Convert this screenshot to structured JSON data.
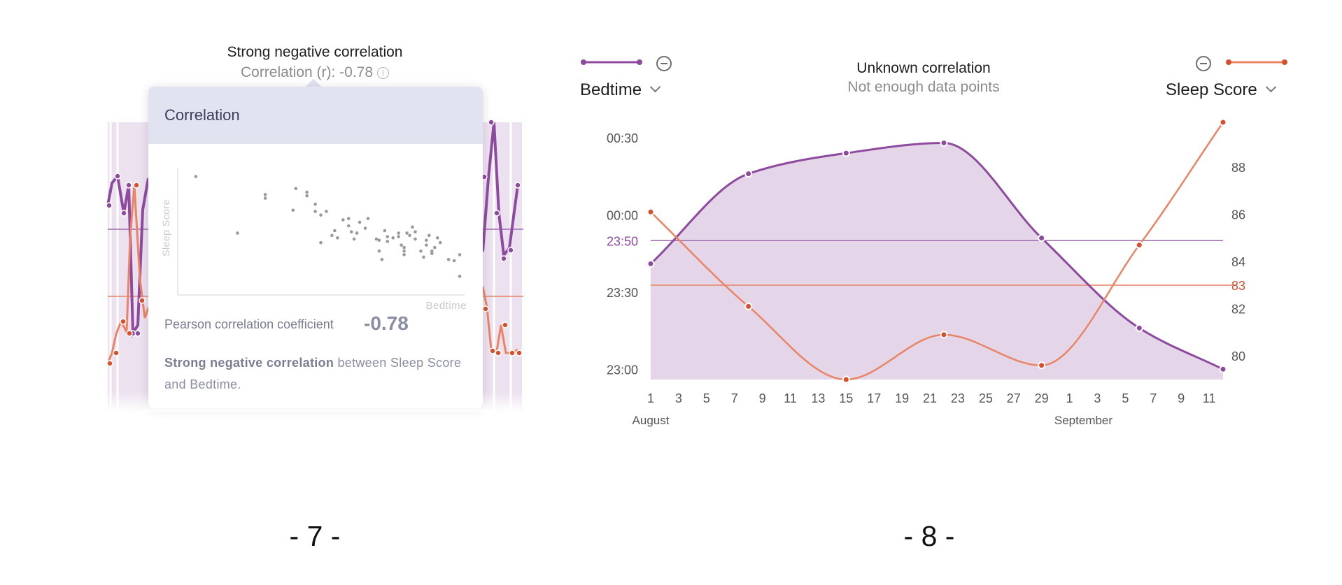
{
  "colors": {
    "bedtime": "#8e4a9e",
    "sleep_score": "#e98465",
    "sleep_score_dot": "#d6502e",
    "bedtime_fill": "#e4d6e8",
    "tooltip_header": "#e1e3f1"
  },
  "panel7": {
    "title": "Strong negative correlation",
    "subtitle": "Correlation (r): -0.78",
    "tooltip": {
      "title": "Correlation",
      "pearson_label": "Pearson correlation coefficient",
      "pearson_value": "-0.78",
      "description_bold": "Strong negative correlation",
      "description_rest": " between Sleep Score and Bedtime."
    },
    "page_number": "- 7 -"
  },
  "panel8": {
    "title": "Unknown correlation",
    "subtitle": "Not enough data points",
    "left_selector": {
      "label": "Bedtime",
      "icon": "chevron-down-icon"
    },
    "right_selector": {
      "label": "Sleep Score",
      "icon": "chevron-down-icon"
    },
    "page_number": "- 8 -"
  },
  "chart_data": [
    {
      "type": "scatter",
      "xlabel": "Bedtime",
      "ylabel": "Sleep Score",
      "x": [
        0.05,
        0.2,
        0.3,
        0.3,
        0.4,
        0.41,
        0.45,
        0.45,
        0.48,
        0.48,
        0.5,
        0.5,
        0.52,
        0.54,
        0.55,
        0.56,
        0.58,
        0.6,
        0.6,
        0.61,
        0.62,
        0.63,
        0.64,
        0.66,
        0.67,
        0.7,
        0.71,
        0.71,
        0.72,
        0.73,
        0.74,
        0.74,
        0.76,
        0.78,
        0.78,
        0.79,
        0.8,
        0.8,
        0.8,
        0.81,
        0.82,
        0.83,
        0.84,
        0.84,
        0.86,
        0.87,
        0.88,
        0.88,
        0.89,
        0.9,
        0.9,
        0.91,
        0.92,
        0.93,
        0.96,
        0.98,
        1.0,
        1.0
      ],
      "y": [
        0.95,
        0.48,
        0.8,
        0.77,
        0.67,
        0.85,
        0.82,
        0.79,
        0.72,
        0.66,
        0.63,
        0.4,
        0.66,
        0.46,
        0.5,
        0.44,
        0.59,
        0.6,
        0.54,
        0.49,
        0.43,
        0.48,
        0.57,
        0.52,
        0.6,
        0.43,
        0.42,
        0.33,
        0.26,
        0.5,
        0.45,
        0.41,
        0.44,
        0.45,
        0.48,
        0.38,
        0.36,
        0.33,
        0.3,
        0.48,
        0.46,
        0.53,
        0.49,
        0.43,
        0.33,
        0.28,
        0.38,
        0.42,
        0.46,
        0.33,
        0.31,
        0.36,
        0.44,
        0.4,
        0.26,
        0.25,
        0.3,
        0.12
      ],
      "r": -0.78
    },
    {
      "type": "line",
      "x_labels": [
        "1",
        "3",
        "5",
        "7",
        "9",
        "11",
        "13",
        "15",
        "17",
        "19",
        "21",
        "23",
        "25",
        "27",
        "29",
        "1",
        "3",
        "5",
        "7",
        "9",
        "11"
      ],
      "month_labels": [
        {
          "label": "August",
          "day": 1
        },
        {
          "label": "September",
          "day": 32
        }
      ],
      "x_range_days": [
        1,
        42
      ],
      "y_left": {
        "ticks": [
          "00:30",
          "00:00",
          "23:30",
          "23:00"
        ],
        "range_min": [
          -64,
          36
        ],
        "average_label": "23:50",
        "average_min": -10
      },
      "y_right": {
        "ticks": [
          "88",
          "86",
          "84",
          "82",
          "80"
        ],
        "range": [
          79,
          89.9
        ],
        "average_label": "83",
        "average": 83
      },
      "series": [
        {
          "name": "Bedtime",
          "axis": "left",
          "unit": "minutes from 00:00",
          "days": [
            1,
            8,
            15,
            22,
            29,
            36,
            43
          ],
          "values": [
            -19,
            16,
            24,
            28,
            -9,
            -44,
            -60
          ]
        },
        {
          "name": "Sleep Score",
          "axis": "right",
          "days": [
            1,
            8,
            15,
            22,
            29,
            36,
            43
          ],
          "values": [
            86.1,
            82.1,
            79,
            80.9,
            79.6,
            84.7,
            89.9
          ]
        }
      ]
    }
  ]
}
